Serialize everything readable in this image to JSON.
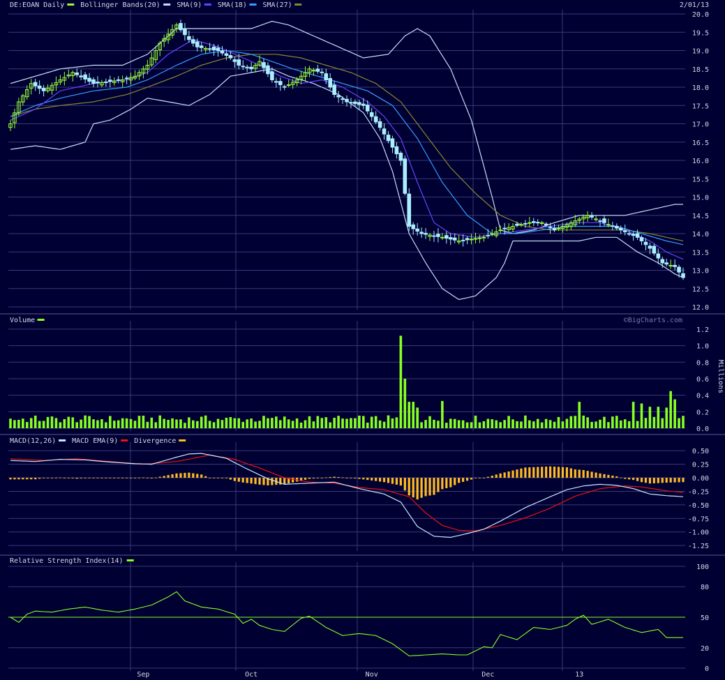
{
  "colors": {
    "background": "#000033",
    "grid": "#3a3a7a",
    "axis_text": "#d8d8e8",
    "up_candle": "#99ff33",
    "down_candle": "#aaeeff",
    "bollinger": "#c8e0f8",
    "sma9": "#c8f0ff",
    "sma18": "#6644ff",
    "sma27": "#33a0ff",
    "sma_extra": "#888833",
    "volume": "#88ff22",
    "macd": "#c8e8ff",
    "macd_ema": "#ee1111",
    "divergence": "#ffbb22",
    "rsi": "#88ff22",
    "rsi_mid": "#88ff22"
  },
  "chart_data": {
    "type": "candlestick",
    "date": "2/01/13",
    "watermark": "©BigCharts.com",
    "x_labels": [
      {
        "label": "Sep",
        "index": 32
      },
      {
        "label": "Oct",
        "index": 58
      },
      {
        "label": "Nov",
        "index": 87
      },
      {
        "label": "Dec",
        "index": 115
      },
      {
        "label": "13",
        "index": 137
      }
    ],
    "price_panel": {
      "legend": [
        {
          "text": "DE:EOAN Daily",
          "swatch": "up_candle"
        },
        {
          "text": "Bollinger Bands(20)",
          "swatch": "bollinger"
        },
        {
          "text": "SMA(9)",
          "swatch": "sma18"
        },
        {
          "text": "SMA(18)",
          "swatch": "sma27"
        },
        {
          "text": "SMA(27)",
          "swatch": "sma_extra"
        }
      ],
      "ylim": [
        12.0,
        20.0
      ],
      "yticks": [
        "20.0",
        "19.5",
        "19.0",
        "18.5",
        "18.0",
        "17.5",
        "17.0",
        "16.5",
        "16.0",
        "15.5",
        "15.0",
        "14.5",
        "14.0",
        "13.5",
        "13.0",
        "12.5",
        "12.0"
      ],
      "candle_knots": [
        [
          0,
          17.0
        ],
        [
          2,
          17.6
        ],
        [
          5,
          18.1
        ],
        [
          8,
          17.9
        ],
        [
          12,
          18.2
        ],
        [
          15,
          18.4
        ],
        [
          20,
          18.1
        ],
        [
          27,
          18.2
        ],
        [
          30,
          18.3
        ],
        [
          33,
          18.6
        ],
        [
          36,
          19.2
        ],
        [
          40,
          19.7
        ],
        [
          43,
          19.3
        ],
        [
          45,
          19.1
        ],
        [
          50,
          19.0
        ],
        [
          53,
          18.8
        ],
        [
          55,
          18.6
        ],
        [
          58,
          18.5
        ],
        [
          60,
          18.7
        ],
        [
          63,
          18.2
        ],
        [
          66,
          18.0
        ],
        [
          69,
          18.2
        ],
        [
          72,
          18.5
        ],
        [
          75,
          18.4
        ],
        [
          78,
          17.8
        ],
        [
          81,
          17.6
        ],
        [
          85,
          17.5
        ],
        [
          89,
          16.9
        ],
        [
          94,
          16.0
        ],
        [
          96,
          14.2
        ],
        [
          99,
          14.0
        ],
        [
          104,
          13.9
        ],
        [
          108,
          13.8
        ],
        [
          114,
          13.9
        ],
        [
          118,
          14.1
        ],
        [
          121,
          14.2
        ],
        [
          125,
          14.3
        ],
        [
          128,
          14.3
        ],
        [
          131,
          14.1
        ],
        [
          137,
          14.4
        ],
        [
          139,
          14.5
        ],
        [
          143,
          14.3
        ],
        [
          147,
          14.1
        ],
        [
          151,
          13.9
        ],
        [
          154,
          13.6
        ],
        [
          157,
          13.2
        ],
        [
          160,
          13.1
        ],
        [
          162,
          12.8
        ]
      ],
      "bb_upper_knots": [
        [
          0,
          18.1
        ],
        [
          6,
          18.3
        ],
        [
          12,
          18.5
        ],
        [
          20,
          18.6
        ],
        [
          27,
          18.6
        ],
        [
          33,
          18.9
        ],
        [
          40,
          19.6
        ],
        [
          45,
          19.6
        ],
        [
          52,
          19.6
        ],
        [
          58,
          19.6
        ],
        [
          63,
          19.8
        ],
        [
          67,
          19.7
        ],
        [
          75,
          19.3
        ],
        [
          85,
          18.8
        ],
        [
          91,
          18.9
        ],
        [
          95,
          19.4
        ],
        [
          98,
          19.6
        ],
        [
          101,
          19.4
        ],
        [
          106,
          18.5
        ],
        [
          111,
          17.1
        ],
        [
          116,
          15.0
        ],
        [
          118,
          14.1
        ],
        [
          121,
          14.0
        ],
        [
          126,
          14.1
        ],
        [
          131,
          14.3
        ],
        [
          137,
          14.5
        ],
        [
          141,
          14.5
        ],
        [
          148,
          14.5
        ],
        [
          152,
          14.6
        ],
        [
          156,
          14.7
        ],
        [
          160,
          14.8
        ],
        [
          162,
          14.8
        ]
      ],
      "bb_lower_knots": [
        [
          0,
          16.3
        ],
        [
          6,
          16.4
        ],
        [
          12,
          16.3
        ],
        [
          18,
          16.5
        ],
        [
          20,
          17.0
        ],
        [
          24,
          17.1
        ],
        [
          29,
          17.4
        ],
        [
          33,
          17.7
        ],
        [
          38,
          17.6
        ],
        [
          43,
          17.5
        ],
        [
          48,
          17.8
        ],
        [
          53,
          18.3
        ],
        [
          58,
          18.4
        ],
        [
          63,
          18.5
        ],
        [
          67,
          18.3
        ],
        [
          73,
          18.1
        ],
        [
          79,
          17.8
        ],
        [
          85,
          17.3
        ],
        [
          89,
          16.6
        ],
        [
          92,
          15.7
        ],
        [
          96,
          14.0
        ],
        [
          100,
          13.2
        ],
        [
          104,
          12.5
        ],
        [
          108,
          12.2
        ],
        [
          112,
          12.3
        ],
        [
          117,
          12.8
        ],
        [
          119,
          13.2
        ],
        [
          121,
          13.8
        ],
        [
          126,
          13.8
        ],
        [
          131,
          13.8
        ],
        [
          137,
          13.8
        ],
        [
          141,
          13.9
        ],
        [
          146,
          13.9
        ],
        [
          151,
          13.5
        ],
        [
          156,
          13.2
        ],
        [
          160,
          12.9
        ],
        [
          162,
          12.8
        ]
      ],
      "sma9_knots": [
        [
          0,
          17.1
        ],
        [
          6,
          17.4
        ],
        [
          12,
          17.9
        ],
        [
          20,
          18.1
        ],
        [
          28,
          18.2
        ],
        [
          33,
          18.4
        ],
        [
          38,
          18.9
        ],
        [
          44,
          19.3
        ],
        [
          50,
          19.1
        ],
        [
          56,
          18.8
        ],
        [
          60,
          18.6
        ],
        [
          65,
          18.3
        ],
        [
          70,
          18.1
        ],
        [
          75,
          18.2
        ],
        [
          80,
          18.0
        ],
        [
          86,
          17.6
        ],
        [
          90,
          17.2
        ],
        [
          94,
          16.6
        ],
        [
          98,
          15.4
        ],
        [
          102,
          14.3
        ],
        [
          106,
          14.0
        ],
        [
          112,
          13.9
        ],
        [
          118,
          14.0
        ],
        [
          124,
          14.1
        ],
        [
          130,
          14.2
        ],
        [
          136,
          14.3
        ],
        [
          142,
          14.3
        ],
        [
          148,
          14.1
        ],
        [
          154,
          13.8
        ],
        [
          158,
          13.5
        ],
        [
          162,
          13.3
        ]
      ],
      "sma18_knots": [
        [
          0,
          17.2
        ],
        [
          6,
          17.5
        ],
        [
          12,
          17.7
        ],
        [
          20,
          17.9
        ],
        [
          28,
          18.0
        ],
        [
          33,
          18.2
        ],
        [
          40,
          18.6
        ],
        [
          46,
          18.9
        ],
        [
          52,
          19.0
        ],
        [
          58,
          18.9
        ],
        [
          63,
          18.7
        ],
        [
          68,
          18.5
        ],
        [
          74,
          18.3
        ],
        [
          80,
          18.1
        ],
        [
          86,
          17.9
        ],
        [
          92,
          17.5
        ],
        [
          98,
          16.6
        ],
        [
          104,
          15.4
        ],
        [
          110,
          14.5
        ],
        [
          116,
          14.0
        ],
        [
          122,
          14.0
        ],
        [
          128,
          14.1
        ],
        [
          134,
          14.2
        ],
        [
          140,
          14.2
        ],
        [
          146,
          14.2
        ],
        [
          152,
          14.0
        ],
        [
          158,
          13.8
        ],
        [
          162,
          13.7
        ]
      ],
      "sma27_knots": [
        [
          0,
          17.2
        ],
        [
          6,
          17.4
        ],
        [
          12,
          17.5
        ],
        [
          20,
          17.6
        ],
        [
          28,
          17.8
        ],
        [
          33,
          18.0
        ],
        [
          40,
          18.3
        ],
        [
          46,
          18.6
        ],
        [
          52,
          18.8
        ],
        [
          58,
          18.9
        ],
        [
          64,
          18.9
        ],
        [
          70,
          18.8
        ],
        [
          76,
          18.6
        ],
        [
          82,
          18.4
        ],
        [
          88,
          18.1
        ],
        [
          94,
          17.6
        ],
        [
          100,
          16.7
        ],
        [
          106,
          15.8
        ],
        [
          112,
          15.1
        ],
        [
          118,
          14.5
        ],
        [
          124,
          14.2
        ],
        [
          130,
          14.1
        ],
        [
          136,
          14.1
        ],
        [
          142,
          14.1
        ],
        [
          148,
          14.1
        ],
        [
          154,
          14.0
        ],
        [
          158,
          13.9
        ],
        [
          162,
          13.8
        ]
      ]
    },
    "volume_panel": {
      "legend": [
        {
          "text": "Volume",
          "swatch": "volume"
        }
      ],
      "ylabel": "Millions",
      "ylim": [
        0,
        1.25
      ],
      "yticks": [
        "1.2",
        "1.0",
        "0.8",
        "0.6",
        "0.4",
        "0.2",
        "0.0"
      ],
      "base": 0.13,
      "spikes": [
        [
          94,
          1.12
        ],
        [
          95,
          0.6
        ],
        [
          96,
          0.32
        ],
        [
          97,
          0.32
        ],
        [
          98,
          0.25
        ],
        [
          104,
          0.33
        ],
        [
          137,
          0.32
        ],
        [
          150,
          0.32
        ],
        [
          152,
          0.3
        ],
        [
          154,
          0.26
        ],
        [
          156,
          0.26
        ],
        [
          158,
          0.25
        ],
        [
          159,
          0.45
        ],
        [
          160,
          0.35
        ]
      ]
    },
    "macd_panel": {
      "legend": [
        {
          "text": "MACD(12,26)",
          "swatch": "macd"
        },
        {
          "text": "MACD EMA(9)",
          "swatch": "macd_ema"
        },
        {
          "text": "Divergence",
          "swatch": "divergence"
        }
      ],
      "ylim": [
        -1.3,
        0.58
      ],
      "yticks": [
        "0.50",
        "0.25",
        "0.00",
        "-0.25",
        "-0.50",
        "-0.75",
        "-1.00",
        "-1.25"
      ],
      "macd_knots": [
        [
          0,
          0.32
        ],
        [
          6,
          0.3
        ],
        [
          12,
          0.34
        ],
        [
          18,
          0.33
        ],
        [
          24,
          0.29
        ],
        [
          30,
          0.26
        ],
        [
          34,
          0.25
        ],
        [
          40,
          0.38
        ],
        [
          43,
          0.44
        ],
        [
          46,
          0.45
        ],
        [
          52,
          0.36
        ],
        [
          56,
          0.2
        ],
        [
          62,
          -0.02
        ],
        [
          66,
          -0.12
        ],
        [
          72,
          -0.1
        ],
        [
          78,
          -0.08
        ],
        [
          84,
          -0.2
        ],
        [
          90,
          -0.3
        ],
        [
          94,
          -0.45
        ],
        [
          98,
          -0.9
        ],
        [
          102,
          -1.08
        ],
        [
          106,
          -1.1
        ],
        [
          110,
          -1.03
        ],
        [
          114,
          -0.95
        ],
        [
          118,
          -0.8
        ],
        [
          124,
          -0.55
        ],
        [
          130,
          -0.35
        ],
        [
          134,
          -0.22
        ],
        [
          138,
          -0.15
        ],
        [
          142,
          -0.12
        ],
        [
          146,
          -0.14
        ],
        [
          150,
          -0.2
        ],
        [
          154,
          -0.3
        ],
        [
          158,
          -0.33
        ],
        [
          162,
          -0.35
        ]
      ],
      "ema_knots": [
        [
          0,
          0.35
        ],
        [
          8,
          0.32
        ],
        [
          16,
          0.35
        ],
        [
          24,
          0.3
        ],
        [
          32,
          0.25
        ],
        [
          40,
          0.3
        ],
        [
          48,
          0.42
        ],
        [
          54,
          0.34
        ],
        [
          60,
          0.18
        ],
        [
          66,
          0.0
        ],
        [
          72,
          -0.08
        ],
        [
          78,
          -0.1
        ],
        [
          84,
          -0.18
        ],
        [
          90,
          -0.22
        ],
        [
          96,
          -0.35
        ],
        [
          100,
          -0.65
        ],
        [
          104,
          -0.88
        ],
        [
          108,
          -0.97
        ],
        [
          112,
          -0.98
        ],
        [
          118,
          -0.88
        ],
        [
          124,
          -0.74
        ],
        [
          130,
          -0.56
        ],
        [
          136,
          -0.34
        ],
        [
          142,
          -0.2
        ],
        [
          148,
          -0.15
        ],
        [
          152,
          -0.17
        ],
        [
          158,
          -0.24
        ],
        [
          162,
          -0.27
        ]
      ]
    },
    "rsi_panel": {
      "legend": [
        {
          "text": "Relative Strength Index(14)",
          "swatch": "rsi"
        }
      ],
      "ylim": [
        0,
        100
      ],
      "yticks": [
        "100",
        "80",
        "50",
        "20",
        "0"
      ],
      "midline": 50,
      "rsi_knots": [
        [
          0,
          50
        ],
        [
          2,
          45
        ],
        [
          4,
          53
        ],
        [
          6,
          56
        ],
        [
          10,
          55
        ],
        [
          14,
          58
        ],
        [
          18,
          60
        ],
        [
          22,
          57
        ],
        [
          26,
          55
        ],
        [
          30,
          58
        ],
        [
          34,
          62
        ],
        [
          38,
          70
        ],
        [
          40,
          75
        ],
        [
          42,
          66
        ],
        [
          46,
          60
        ],
        [
          50,
          58
        ],
        [
          54,
          53
        ],
        [
          56,
          44
        ],
        [
          58,
          48
        ],
        [
          60,
          42
        ],
        [
          63,
          38
        ],
        [
          66,
          36
        ],
        [
          70,
          49
        ],
        [
          72,
          51
        ],
        [
          76,
          40
        ],
        [
          80,
          32
        ],
        [
          84,
          34
        ],
        [
          88,
          32
        ],
        [
          92,
          24
        ],
        [
          96,
          12
        ],
        [
          100,
          13
        ],
        [
          104,
          14
        ],
        [
          108,
          13
        ],
        [
          110,
          13
        ],
        [
          114,
          21
        ],
        [
          116,
          20
        ],
        [
          118,
          33
        ],
        [
          122,
          28
        ],
        [
          126,
          40
        ],
        [
          130,
          38
        ],
        [
          134,
          42
        ],
        [
          136,
          48
        ],
        [
          138,
          52
        ],
        [
          140,
          43
        ],
        [
          144,
          48
        ],
        [
          148,
          40
        ],
        [
          152,
          35
        ],
        [
          156,
          38
        ],
        [
          158,
          30
        ],
        [
          162,
          30
        ]
      ]
    }
  }
}
